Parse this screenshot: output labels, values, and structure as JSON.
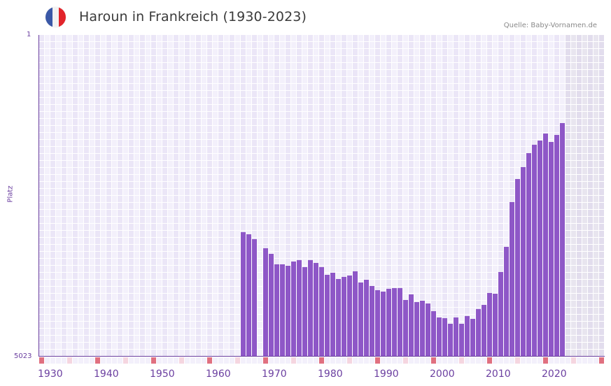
{
  "header": {
    "title": "Haroun in Frankreich (1930-2023)",
    "source": "Quelle: Baby-Vornamen.de",
    "flag_icon": "france-flag-icon",
    "flag_colors": [
      "#3a58a7",
      "#f2f2f2",
      "#e2242b"
    ]
  },
  "colors": {
    "bar": "#8e57c7",
    "axis": "#6b3fa0",
    "grid_a": "#ebe6f7",
    "grid_b": "#f3f0fb",
    "future_a": "#e2dded",
    "future_b": "#e8e5ef",
    "marker_decade": "#e07080",
    "marker_half": "#f5d6e0",
    "marker_plain": "#f3f0fb"
  },
  "chart_data": {
    "type": "bar",
    "title": "Haroun in Frankreich (1930-2023)",
    "xlabel": "",
    "ylabel": "Platz",
    "y_inverted": true,
    "ylim": [
      5023,
      1
    ],
    "y_ticks": [
      "1",
      "5023"
    ],
    "x_range": [
      1930,
      2030
    ],
    "x_ticks": [
      "1930",
      "1940",
      "1950",
      "1960",
      "1970",
      "1980",
      "1990",
      "2000",
      "2010",
      "2020"
    ],
    "future_shaded_from": 2024,
    "grid": true,
    "legend": null,
    "categories": [
      1966,
      1967,
      1968,
      1970,
      1971,
      1972,
      1973,
      1974,
      1975,
      1976,
      1977,
      1978,
      1979,
      1980,
      1981,
      1982,
      1983,
      1984,
      1985,
      1986,
      1987,
      1988,
      1989,
      1990,
      1991,
      1992,
      1993,
      1994,
      1995,
      1996,
      1997,
      1998,
      1999,
      2000,
      2001,
      2002,
      2003,
      2004,
      2005,
      2006,
      2007,
      2008,
      2009,
      2010,
      2011,
      2012,
      2013,
      2014,
      2015,
      2016,
      2017,
      2018,
      2019,
      2020,
      2021,
      2022,
      2023
    ],
    "values": [
      3080,
      3110,
      3190,
      3330,
      3420,
      3580,
      3580,
      3600,
      3540,
      3515,
      3625,
      3515,
      3560,
      3625,
      3745,
      3710,
      3810,
      3775,
      3755,
      3690,
      3865,
      3820,
      3920,
      3985,
      4005,
      3965,
      3950,
      3950,
      4140,
      4050,
      4170,
      4150,
      4195,
      4310,
      4410,
      4420,
      4510,
      4410,
      4510,
      4390,
      4435,
      4280,
      4215,
      4030,
      4040,
      3700,
      3310,
      2610,
      2250,
      2065,
      1845,
      1715,
      1650,
      1540,
      1670,
      1560,
      1375
    ]
  }
}
